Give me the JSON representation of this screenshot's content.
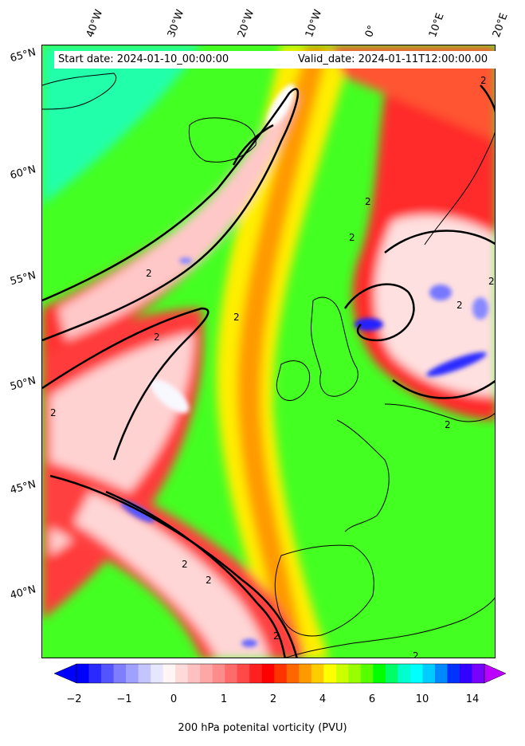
{
  "header": {
    "start_date": "Start date: 2024-01-10_00:00:00",
    "valid_date": "Valid_date: 2024-01-11T12:00:00.00"
  },
  "longitude_labels": [
    "40°W",
    "30°W",
    "20°W",
    "10°W",
    "0°",
    "10°E",
    "20°E"
  ],
  "latitude_labels": [
    "65°N",
    "60°N",
    "55°N",
    "50°N",
    "45°N",
    "40°N"
  ],
  "colorbar": {
    "title": "200 hPa potenital vorticity (PVU)",
    "tick_labels": [
      "−2",
      "−1",
      "0",
      "1",
      "2",
      "4",
      "6",
      "10",
      "14"
    ],
    "colors": [
      "#0000ff",
      "#2a2aff",
      "#5454ff",
      "#7e7eff",
      "#a0a0ff",
      "#c4c4ff",
      "#e6e6ff",
      "#fff5f5",
      "#ffdada",
      "#ffc0c0",
      "#ffa6a6",
      "#ff8c8c",
      "#ff6a6a",
      "#ff4848",
      "#ff2020",
      "#ff0000",
      "#ff3300",
      "#ff6600",
      "#ff9900",
      "#ffcc00",
      "#ffff00",
      "#ccff00",
      "#99ff00",
      "#55ff00",
      "#00ff00",
      "#00ff66",
      "#00ffcc",
      "#00ffff",
      "#00ccff",
      "#0088ff",
      "#0033ff",
      "#3300ff",
      "#7700ff"
    ],
    "under_color": "#0000ff",
    "over_color": "#bb00ff"
  },
  "contour_label": "2",
  "colors": {
    "background_green": "#33ff33",
    "high_pv": "#ff0000",
    "low_pv": "#ffffff",
    "coast": "#000000"
  }
}
